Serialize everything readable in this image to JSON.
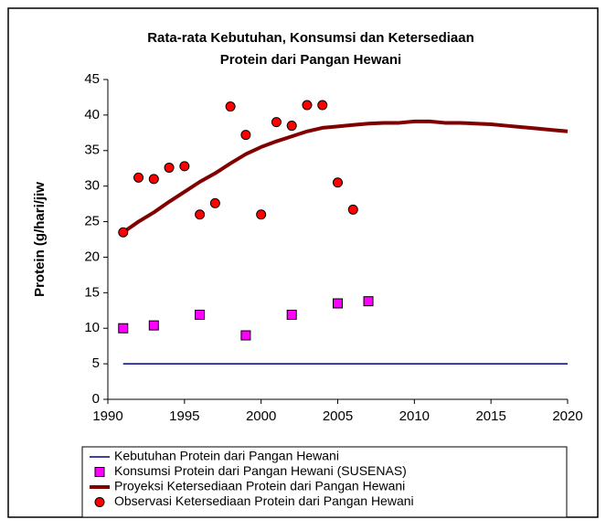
{
  "chart_data": {
    "type": "line",
    "title": [
      "Rata-rata Kebutuhan, Konsumsi dan Ketersediaan",
      "Protein dari Pangan Hewani"
    ],
    "ylabel": "Protein (g/hari/jiw",
    "xlim": [
      1990,
      2020
    ],
    "xticks": [
      1990,
      1995,
      2000,
      2005,
      2010,
      2015,
      2020
    ],
    "ylim": [
      0,
      45
    ],
    "yticks": [
      0,
      5,
      10,
      15,
      20,
      25,
      30,
      35,
      40,
      45
    ],
    "grid": false,
    "legend": "bottom",
    "series": [
      {
        "name": "Kebutuhan Protein dari Pangan Hewani",
        "color": "#000080",
        "mode": "line",
        "width": 1.5,
        "x": [
          1991,
          2020
        ],
        "values": [
          5,
          5
        ]
      },
      {
        "name": "Konsumsi Protein dari Pangan Hewani (SUSENAS)",
        "color": "#ff00ff",
        "mode": "markers",
        "marker": "square",
        "x": [
          1991,
          1993,
          1996,
          1999,
          2002,
          2005,
          2007
        ],
        "values": [
          10,
          10.4,
          11.9,
          9,
          11.9,
          13.5,
          13.8
        ]
      },
      {
        "name": "Proyeksi Ketersediaan Protein dari Pangan Hewani",
        "color": "#800000",
        "mode": "line",
        "width": 4,
        "x": [
          1991,
          1992,
          1993,
          1994,
          1995,
          1996,
          1997,
          1998,
          1999,
          2000,
          2001,
          2002,
          2003,
          2004,
          2005,
          2006,
          2007,
          2008,
          2009,
          2010,
          2011,
          2012,
          2013,
          2014,
          2015,
          2016,
          2017,
          2018,
          2019,
          2020
        ],
        "values": [
          23.5,
          25,
          26.3,
          27.8,
          29.2,
          30.6,
          31.8,
          33.2,
          34.5,
          35.5,
          36.3,
          37,
          37.7,
          38.2,
          38.4,
          38.6,
          38.8,
          38.9,
          38.9,
          39.1,
          39.1,
          38.9,
          38.9,
          38.8,
          38.7,
          38.5,
          38.3,
          38.1,
          37.9,
          37.7
        ]
      },
      {
        "name": "Observasi Ketersediaan Protein dari Pangan Hewani",
        "color": "#ff0000",
        "mode": "markers",
        "marker": "circle",
        "x": [
          1991,
          1992,
          1993,
          1994,
          1995,
          1996,
          1997,
          1998,
          1999,
          2000,
          2001,
          2002,
          2003,
          2004,
          2005,
          2006
        ],
        "values": [
          23.5,
          31.2,
          31,
          32.6,
          32.8,
          26,
          27.6,
          41.2,
          37.2,
          26,
          39,
          38.5,
          41.4,
          41.4,
          30.5,
          26.7
        ]
      }
    ]
  }
}
